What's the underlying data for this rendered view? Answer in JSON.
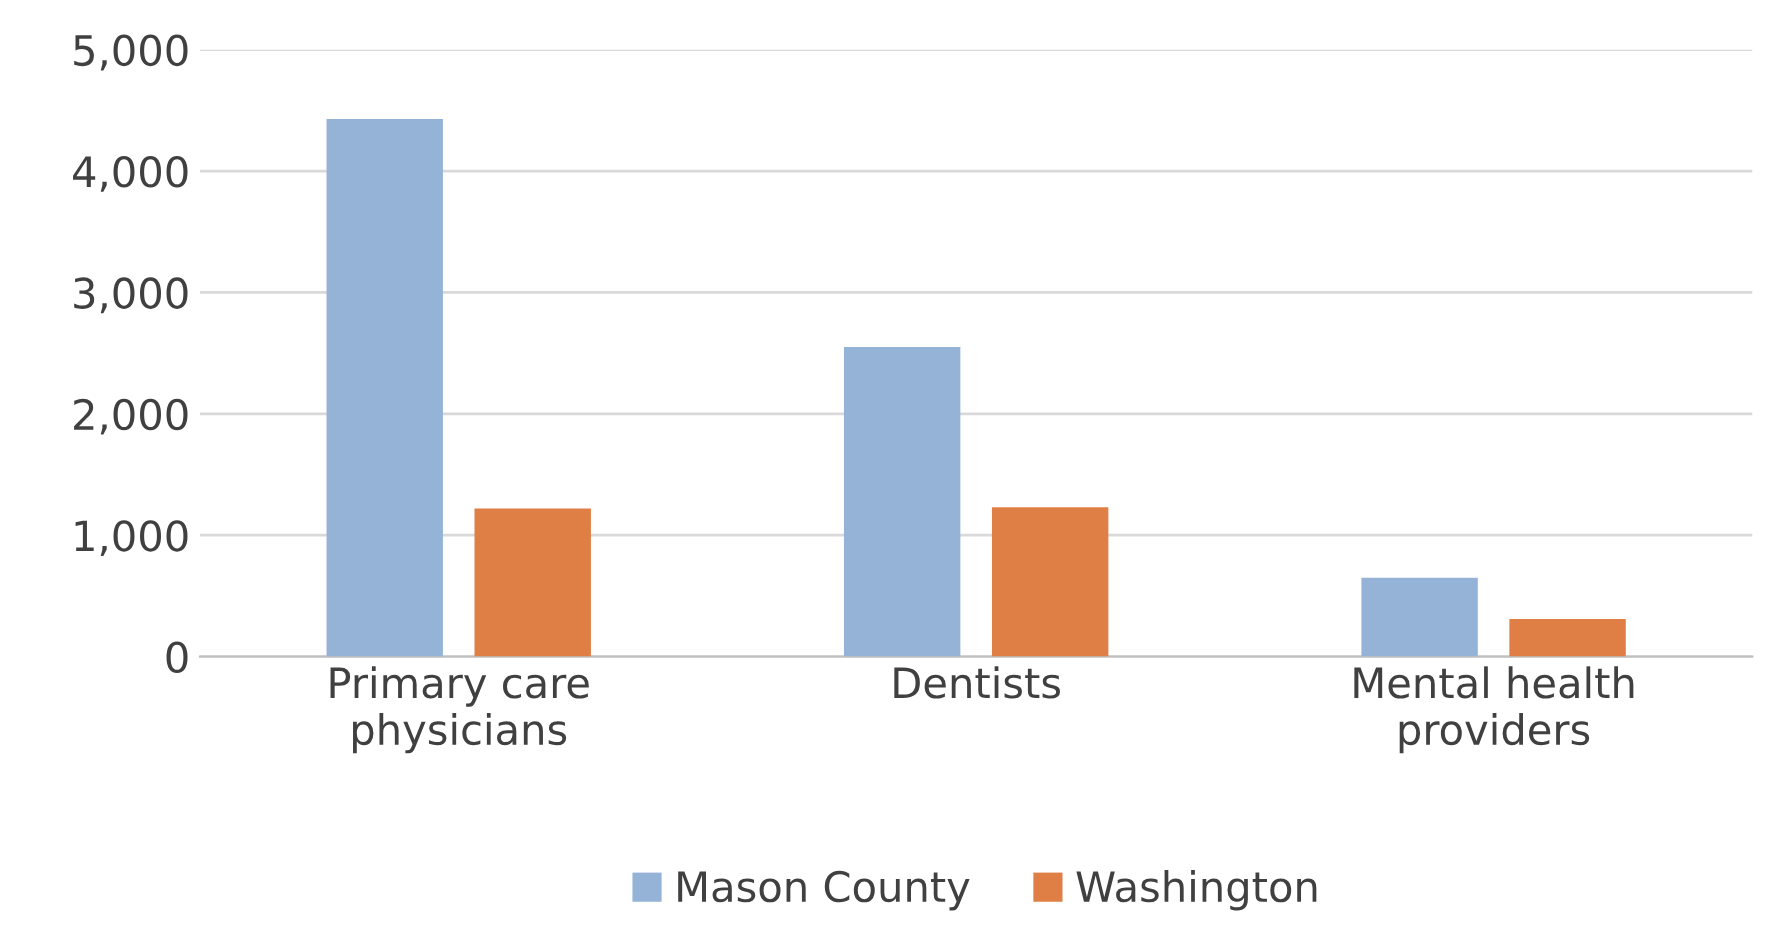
{
  "chart_data": {
    "type": "bar",
    "categories": [
      "Primary care\nphysicians",
      "Dentists",
      "Mental health\nproviders"
    ],
    "series": [
      {
        "name": "Mason County",
        "color": "#95b3d7",
        "values": [
          4430,
          2550,
          650
        ]
      },
      {
        "name": "Washington",
        "color": "#e07f45",
        "values": [
          1220,
          1230,
          310
        ]
      }
    ],
    "ylim": [
      0,
      5000
    ],
    "yticks": [
      {
        "value": 0,
        "label": "0"
      },
      {
        "value": 1000,
        "label": "1,000"
      },
      {
        "value": 2000,
        "label": "2,000"
      },
      {
        "value": 3000,
        "label": "3,000"
      },
      {
        "value": 4000,
        "label": "4,000"
      },
      {
        "value": 5000,
        "label": "5,000"
      }
    ],
    "grid": "y",
    "legend": "bottom"
  }
}
